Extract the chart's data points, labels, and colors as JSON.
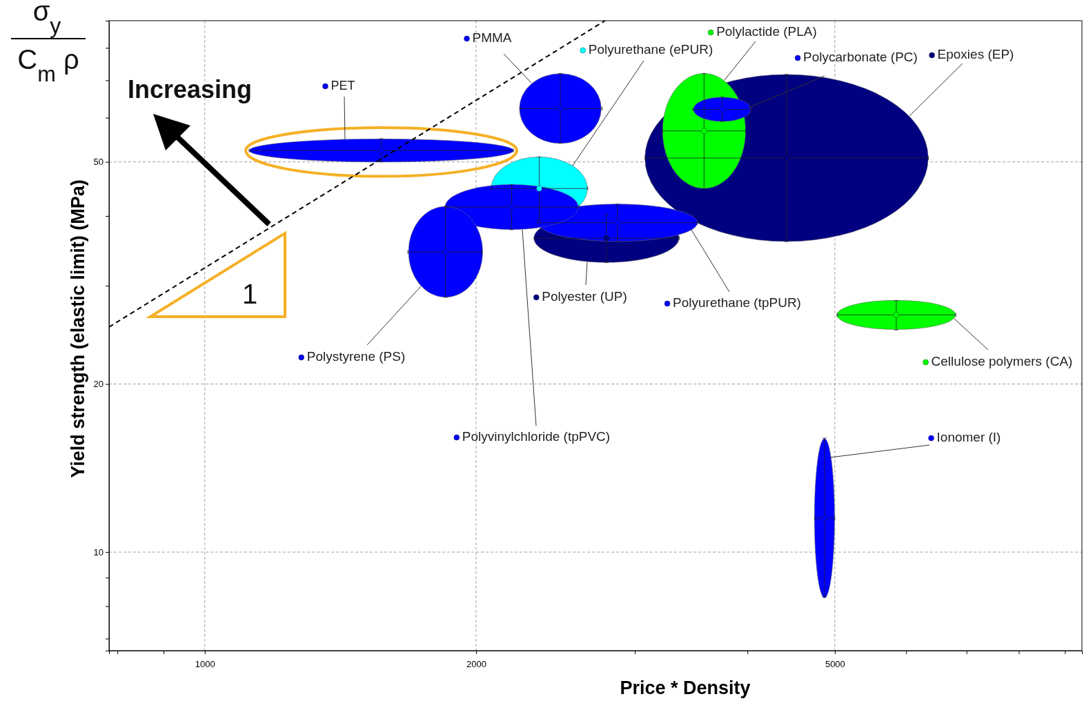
{
  "chart_data": {
    "type": "scatter",
    "xlabel": "Price * Density",
    "ylabel": "Yield strength (elastic limit) (MPa)",
    "log": "xy",
    "grid": true,
    "legend": "top right",
    "xlim": [
      783,
      9400
    ],
    "ylim": [
      6.66,
      89.5
    ],
    "xticks": [
      {
        "value": 800,
        "label": null
      },
      {
        "value": 900,
        "label": null
      },
      1000,
      2000,
      {
        "value": 3000,
        "label": null
      },
      {
        "value": 4000,
        "label": null
      },
      5000,
      {
        "value": 6000,
        "label": null
      },
      {
        "value": 7000,
        "label": null
      },
      {
        "value": 8000,
        "label": null
      },
      {
        "value": 9000,
        "label": null
      }
    ],
    "yticks": [
      {
        "value": 7,
        "label": null
      },
      {
        "value": 8,
        "label": null
      },
      {
        "value": 9,
        "label": null
      },
      10,
      20,
      {
        "value": 30,
        "label": null
      },
      {
        "value": 40,
        "label": null
      },
      50,
      {
        "value": 60,
        "label": null
      },
      {
        "value": 70,
        "label": null
      },
      {
        "value": 80,
        "label": null
      }
    ],
    "series": [
      {
        "name": "Epoxies (EP)",
        "color": "#000080",
        "x": [
          4420
        ],
        "values": [
          50.8
        ],
        "xerrors": [
          [
            3080,
            6350
          ]
        ],
        "errors": [
          [
            36,
            71.7
          ]
        ]
      },
      {
        "name": "Polylactide (PLA)",
        "color": "#00ff00",
        "x": [
          3580
        ],
        "values": [
          56.8
        ],
        "xerrors": [
          [
            3220,
            3980
          ]
        ],
        "errors": [
          [
            44.8,
            72
          ]
        ]
      },
      {
        "name": "Polycarbonate (PC)",
        "color": "#0000ff",
        "x": [
          3750
        ],
        "values": [
          62.1
        ],
        "xerrors": [
          [
            3480,
            4030
          ]
        ],
        "errors": [
          [
            59.1,
            65.3
          ]
        ]
      },
      {
        "name": "PMMA",
        "color": "#0000ff",
        "x": [
          2480
        ],
        "values": [
          62.3
        ],
        "xerrors": [
          [
            2240,
            2760
          ]
        ],
        "errors": [
          [
            54,
            72
          ]
        ]
      },
      {
        "name": "Polyurethane (ePUR)",
        "color": "#00ffff",
        "x": [
          2350
        ],
        "values": [
          44.8
        ],
        "xerrors": [
          [
            2080,
            2660
          ]
        ],
        "errors": [
          [
            39.3,
            51
          ]
        ]
      },
      {
        "name": "Polyester (UP)",
        "color": "#000080",
        "x": [
          2790
        ],
        "values": [
          36.5
        ],
        "xerrors": [
          [
            2320,
            3360
          ]
        ],
        "errors": [
          [
            33,
            40.3
          ]
        ]
      },
      {
        "name": "Polyurethane (tpPUR)",
        "color": "#0000ff",
        "x": [
          2870
        ],
        "values": [
          38.9
        ],
        "xerrors": [
          [
            2340,
            3520
          ]
        ],
        "errors": [
          [
            36,
            42
          ]
        ]
      },
      {
        "name": "Polyvinylchloride (tpPVC)",
        "color": "#0000ff",
        "x": [
          2190
        ],
        "values": [
          41.5
        ],
        "xerrors": [
          [
            1850,
            2600
          ]
        ],
        "errors": [
          [
            37.8,
            45.5
          ]
        ]
      },
      {
        "name": "Polystyrene (PS)",
        "color": "#0000ff",
        "x": [
          1850
        ],
        "values": [
          34.5
        ],
        "xerrors": [
          [
            1680,
            2030
          ]
        ],
        "errors": [
          [
            28.6,
            41.6
          ]
        ]
      },
      {
        "name": "PET",
        "color": "#0000ff",
        "x": [
          1570
        ],
        "values": [
          52.4
        ],
        "xerrors": [
          [
            1120,
            2200
          ]
        ],
        "errors": [
          [
            50,
            55
          ]
        ]
      },
      {
        "name": "Cellulose polymers (CA)",
        "color": "#00ff00",
        "x": [
          5850
        ],
        "values": [
          26.6
        ],
        "xerrors": [
          [
            5030,
            6810
          ]
        ],
        "errors": [
          [
            25,
            28.2
          ]
        ]
      },
      {
        "name": "Ionomer (I)",
        "color": "#0000ff",
        "x": [
          4870
        ],
        "values": [
          11.5
        ],
        "xerrors": [
          [
            4750,
            5000
          ]
        ],
        "errors": [
          [
            8.3,
            16
          ]
        ]
      },
      {
        "type": "line",
        "color": "#000000",
        "line_style": "dashed",
        "x": [
          783,
          2780
        ],
        "values": [
          25.3,
          89.5
        ]
      }
    ],
    "annotations": [
      "Increasing",
      "1",
      "σ$_{y}$",
      "C$_{m}$ ρ"
    ]
  }
}
